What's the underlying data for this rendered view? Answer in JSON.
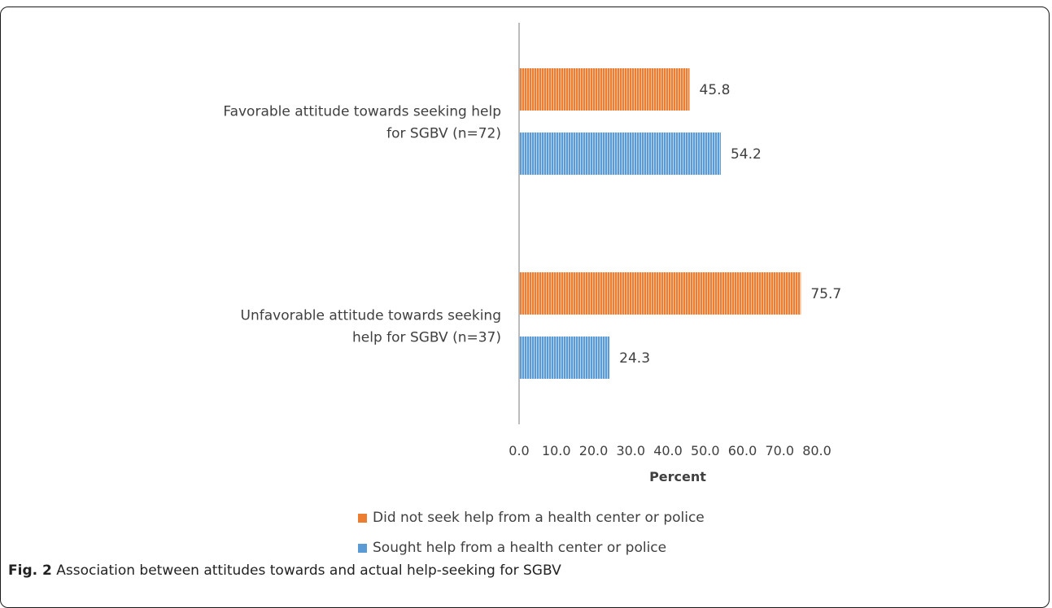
{
  "chart_data": {
    "type": "bar",
    "orientation": "horizontal",
    "categories": [
      [
        "Favorable attitude towards seeking help",
        "for SGBV (n=72)"
      ],
      [
        "Unfavorable attitude towards seeking",
        "help for SGBV (n=37)"
      ]
    ],
    "series": [
      {
        "name": "Did not seek help from a health center or police",
        "color": "#ED7D31",
        "values": [
          45.8,
          75.7
        ]
      },
      {
        "name": "Sought help from a health center or police",
        "color": "#5B9BD5",
        "values": [
          54.2,
          24.3
        ]
      }
    ],
    "data_labels": [
      [
        "45.8",
        "75.7"
      ],
      [
        "54.2",
        "24.3"
      ]
    ],
    "xlabel": "Percent",
    "xlim": [
      0,
      80
    ],
    "xticks": [
      "0.0",
      "10.0",
      "20.0",
      "30.0",
      "40.0",
      "50.0",
      "60.0",
      "70.0",
      "80.0"
    ],
    "grid": false,
    "legend_position": "bottom"
  },
  "caption": {
    "label": "Fig. 2",
    "text": " Association between attitudes towards and actual help-seeking for SGBV"
  }
}
